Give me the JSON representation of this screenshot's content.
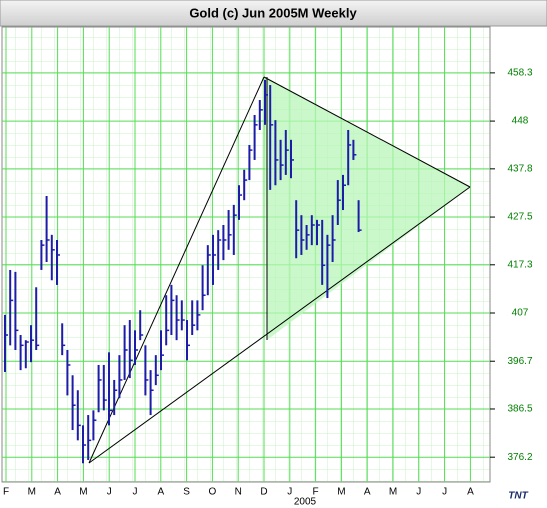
{
  "chart_data": {
    "type": "ohlc",
    "title": "Gold (c) Jun 2005M Weekly",
    "color": "#1c1ca8",
    "tick_color": "#008000",
    "grid": true,
    "high": [
      406.6,
      416.2,
      415.8,
      402.3,
      401.2,
      404.4,
      412.5,
      422.6,
      432.0,
      423.7,
      422.6,
      404.8,
      399.1,
      393.7,
      390.5,
      383.0,
      385.2,
      386.2,
      395.9,
      395.9,
      398.6,
      392.7,
      398.0,
      404.4,
      405.5,
      403.3,
      407.6,
      400.1,
      394.8,
      398.0,
      403.3,
      410.8,
      413.0,
      410.8,
      409.7,
      405.5,
      409.7,
      409.7,
      417.2,
      421.5,
      423.7,
      424.7,
      425.8,
      429.0,
      430.1,
      434.3,
      437.6,
      442.9,
      449.3,
      452.5,
      456.8,
      455.7,
      448.2,
      444.0,
      446.1,
      444.0,
      431.1,
      427.9,
      425.8,
      427.9,
      426.9,
      426.9,
      423.7,
      427.9,
      435.4,
      436.5,
      446.1,
      444.0,
      431.1
    ],
    "low": [
      394.4,
      400.1,
      399.1,
      394.8,
      395.2,
      396.5,
      399.1,
      416.2,
      417.9,
      414.0,
      413.0,
      398.0,
      389.4,
      382.0,
      379.8,
      374.9,
      375.6,
      379.8,
      385.8,
      386.2,
      383.0,
      385.2,
      388.8,
      392.7,
      393.1,
      395.9,
      401.2,
      389.4,
      385.2,
      391.6,
      394.8,
      400.1,
      402.3,
      401.2,
      403.3,
      396.9,
      402.3,
      403.3,
      407.6,
      410.8,
      413.0,
      416.2,
      418.3,
      420.5,
      419.4,
      426.9,
      431.1,
      435.4,
      439.7,
      446.1,
      447.2,
      433.3,
      434.3,
      435.4,
      436.5,
      435.8,
      418.7,
      419.4,
      420.5,
      421.5,
      421.5,
      413.0,
      410.2,
      417.9,
      425.8,
      429.0,
      434.3,
      439.7,
      424.3
    ],
    "close": [
      402.3,
      409.7,
      403.3,
      400.1,
      400.8,
      401.2,
      400.1,
      421.5,
      422.6,
      420.5,
      419.4,
      400.1,
      395.9,
      387.3,
      383.0,
      378.8,
      379.8,
      384.1,
      392.7,
      388.4,
      386.2,
      390.5,
      392.7,
      399.1,
      396.9,
      399.1,
      402.3,
      392.7,
      390.5,
      393.7,
      398.0,
      403.3,
      409.7,
      405.5,
      405.5,
      400.1,
      404.4,
      406.6,
      410.8,
      419.4,
      419.4,
      422.6,
      422.6,
      423.7,
      427.9,
      432.2,
      435.4,
      441.8,
      447.2,
      450.4,
      453.6,
      447.2,
      439.7,
      438.6,
      441.8,
      439.7,
      424.7,
      422.6,
      423.7,
      425.8,
      425.8,
      417.2,
      421.5,
      422.6,
      431.1,
      434.3,
      442.9,
      440.8,
      424.7
    ],
    "ylim": [
      370.9,
      468.1
    ],
    "yticks": [
      458.3,
      448.0,
      437.8,
      427.5,
      417.3,
      407.0,
      396.7,
      386.5,
      376.2
    ],
    "months": [
      "F",
      "M",
      "A",
      "M",
      "J",
      "J",
      "A",
      "S",
      "O",
      "N",
      "D",
      "J",
      "F",
      "M",
      "A",
      "M",
      "J",
      "J",
      "A"
    ],
    "year_label": "2005",
    "logo": "TNT"
  }
}
